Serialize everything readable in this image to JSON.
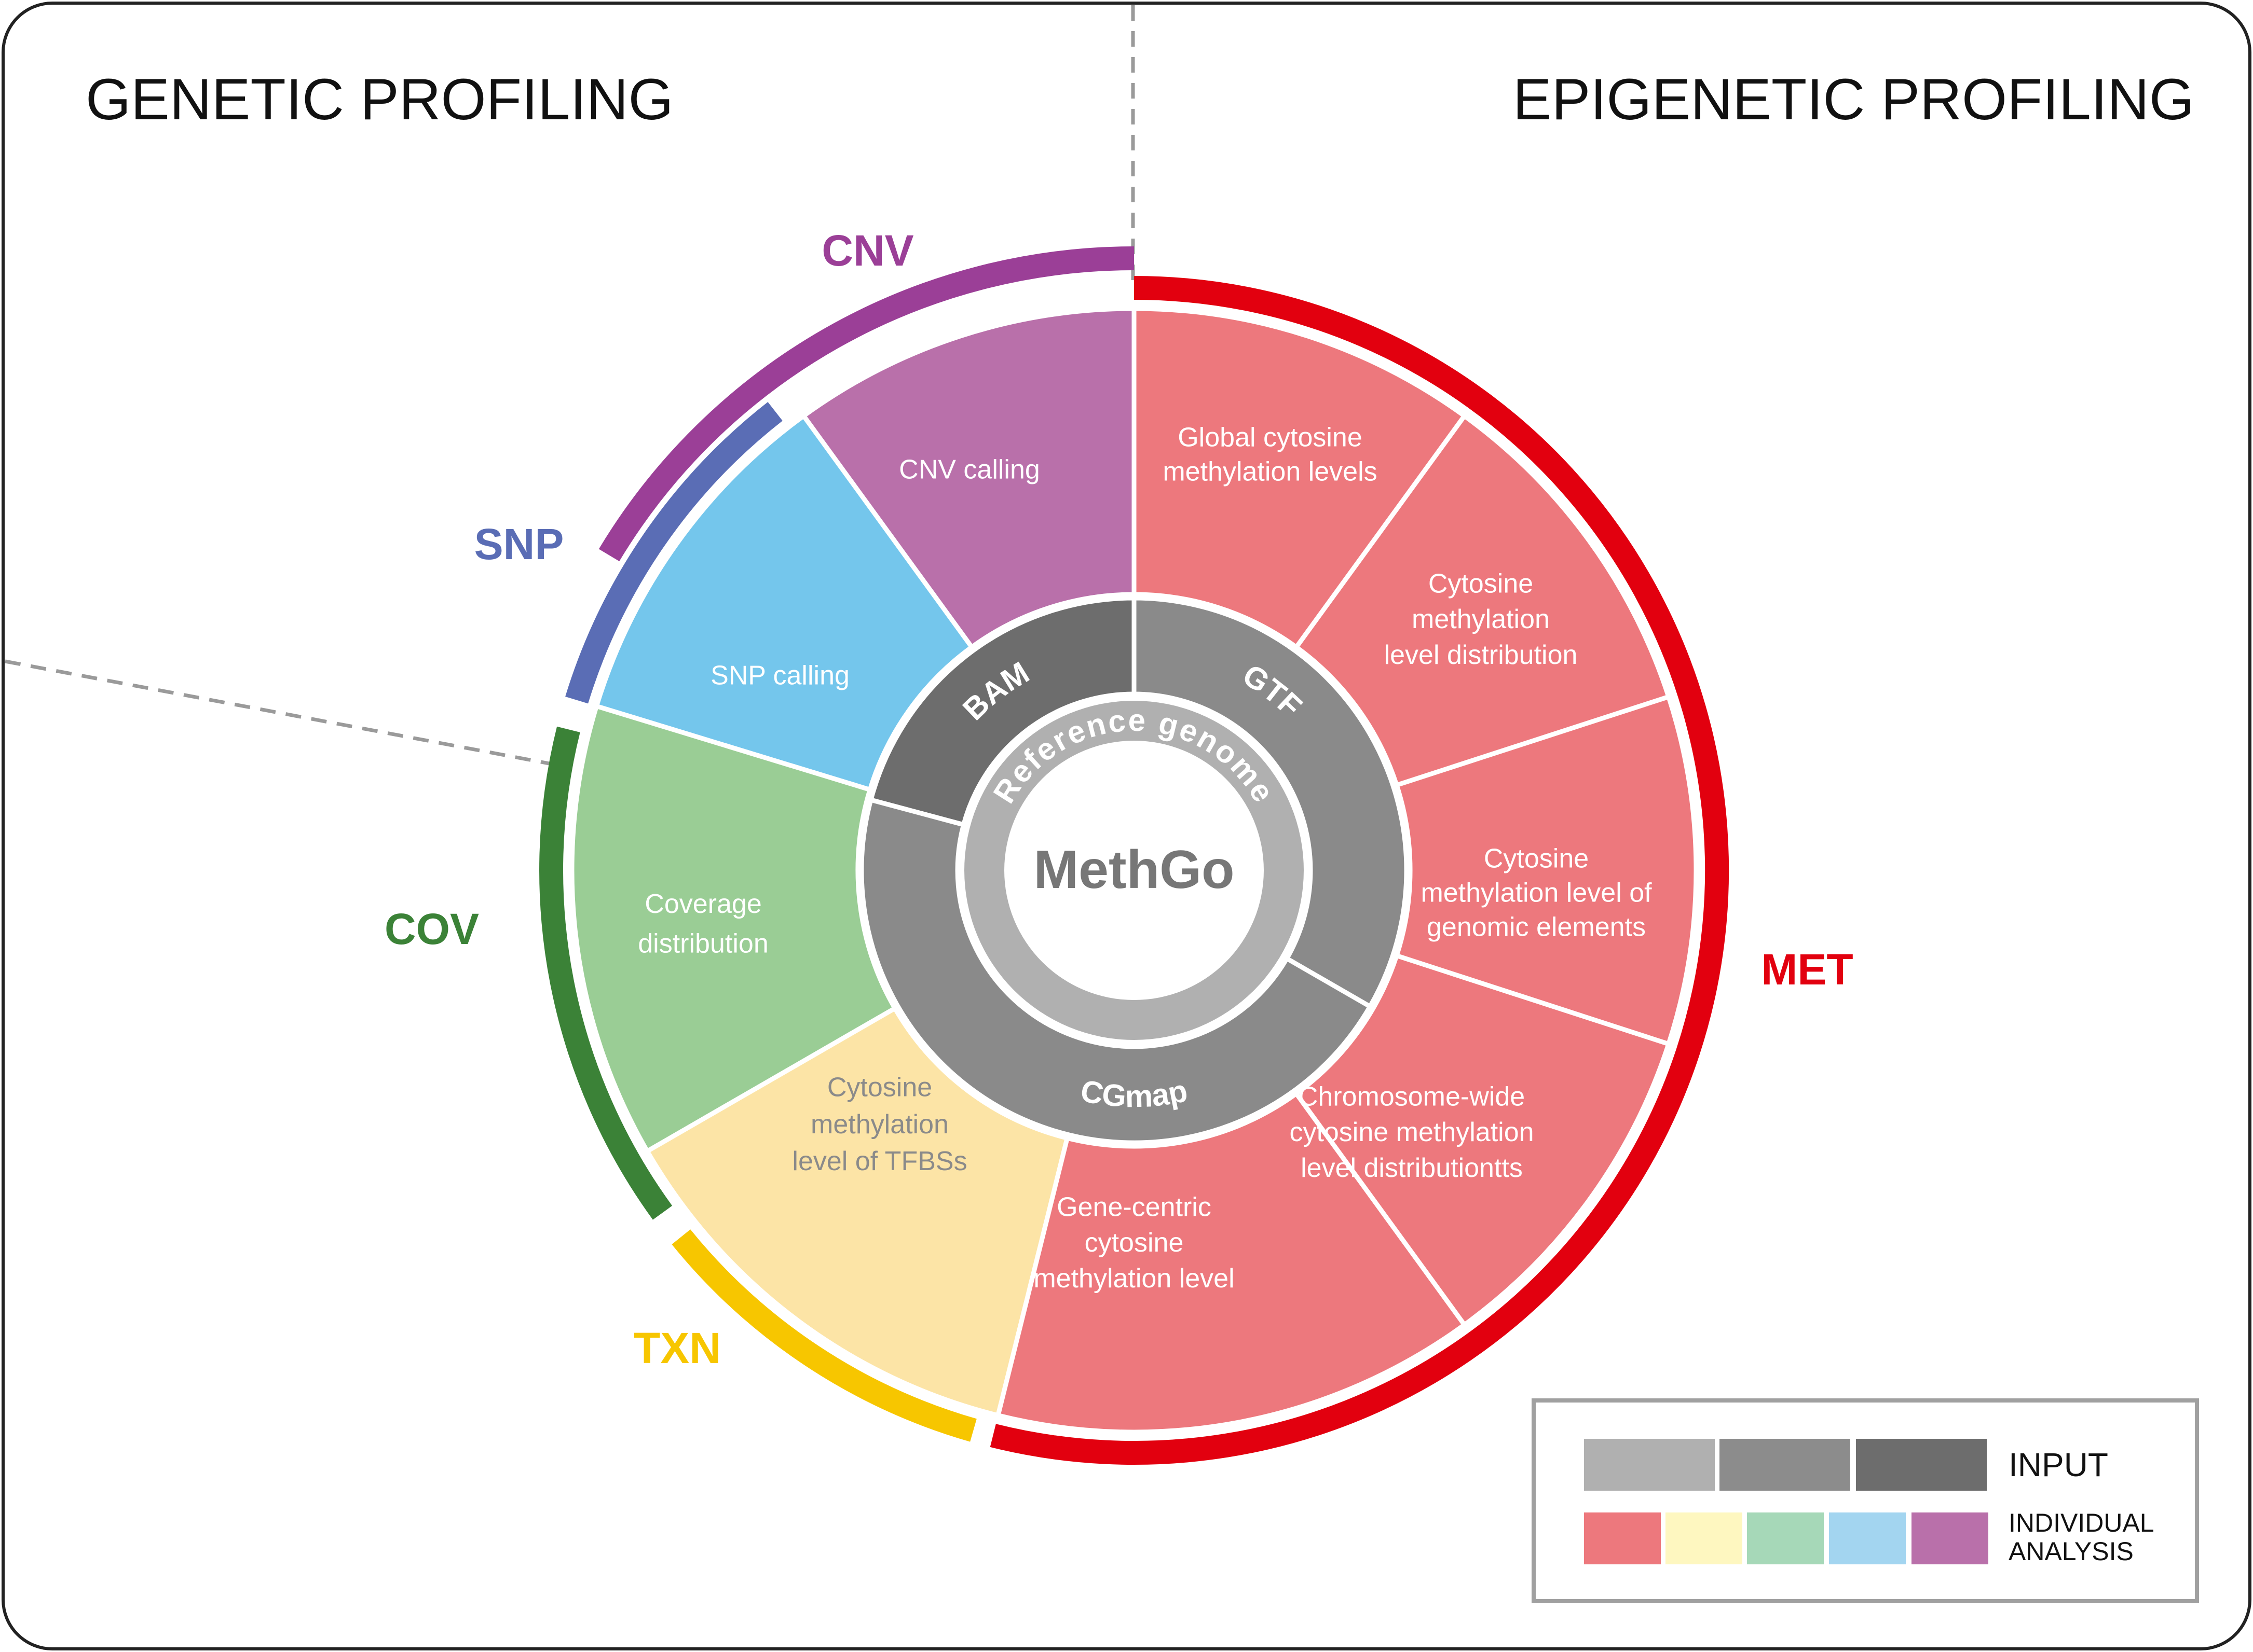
{
  "headers": {
    "left": "GENETIC PROFILING",
    "right": "EPIGENETIC PROFILING"
  },
  "center": {
    "label": "MethGo",
    "ring_label": "Reference genome"
  },
  "inputs": [
    {
      "id": "bam",
      "label": "BAM",
      "color": "#6d6d6d"
    },
    {
      "id": "gtf",
      "label": "GTF",
      "color": "#8a8a8a"
    },
    {
      "id": "cgmap",
      "label": "CGmap",
      "color": "#8a8a8a"
    }
  ],
  "categories": [
    {
      "id": "cnv",
      "label": "CNV",
      "color": "#9b3f97"
    },
    {
      "id": "snp",
      "label": "SNP",
      "color": "#5a6db5"
    },
    {
      "id": "cov",
      "label": "COV",
      "color": "#3b8237"
    },
    {
      "id": "txn",
      "label": "TXN",
      "color": "#f7c600"
    },
    {
      "id": "met",
      "label": "MET",
      "color": "#e2000f"
    }
  ],
  "segments": [
    {
      "id": "cnv-calling",
      "category": "cnv",
      "lines": [
        "CNV calling"
      ],
      "color": "#b970aa"
    },
    {
      "id": "snp-calling",
      "category": "snp",
      "lines": [
        "SNP calling"
      ],
      "color": "#74c6ec"
    },
    {
      "id": "coverage-distribution",
      "category": "cov",
      "lines": [
        "Coverage",
        "distribution"
      ],
      "color": "#9acd95"
    },
    {
      "id": "tfbs-methylation",
      "category": "txn",
      "lines": [
        "Cytosine",
        "methylation",
        "level of TFBSs"
      ],
      "color": "#fce4a6"
    },
    {
      "id": "gene-centric-methylation",
      "category": "met",
      "lines": [
        "Gene-centric",
        "cytosine",
        "methylation level"
      ],
      "color": "#ed787d"
    },
    {
      "id": "chromosome-wide-methylation",
      "category": "met",
      "lines": [
        "Chromosome-wide",
        "cytosine methylation",
        "level distributiontts"
      ],
      "color": "#ed787d"
    },
    {
      "id": "genomic-elements-methylation",
      "category": "met",
      "lines": [
        "Cytosine",
        "methylation level of",
        "genomic elements"
      ],
      "color": "#ed787d"
    },
    {
      "id": "methylation-level-distribution",
      "category": "met",
      "lines": [
        "Cytosine",
        "methylation",
        "level distribution"
      ],
      "color": "#ed787d"
    },
    {
      "id": "global-methylation",
      "category": "met",
      "lines": [
        "Global cytosine",
        "methylation levels"
      ],
      "color": "#ed787d"
    }
  ],
  "legend": {
    "input_label": "INPUT",
    "analysis_label_lines": [
      "INDIVIDUAL",
      "ANALYSIS"
    ],
    "input_colors": [
      "#b0b0b0",
      "#8c8c8c",
      "#6d6d6d"
    ],
    "analysis_colors": [
      "#ed787d",
      "#fef7c0",
      "#a6d8b8",
      "#a3d5f0",
      "#b970aa"
    ]
  }
}
